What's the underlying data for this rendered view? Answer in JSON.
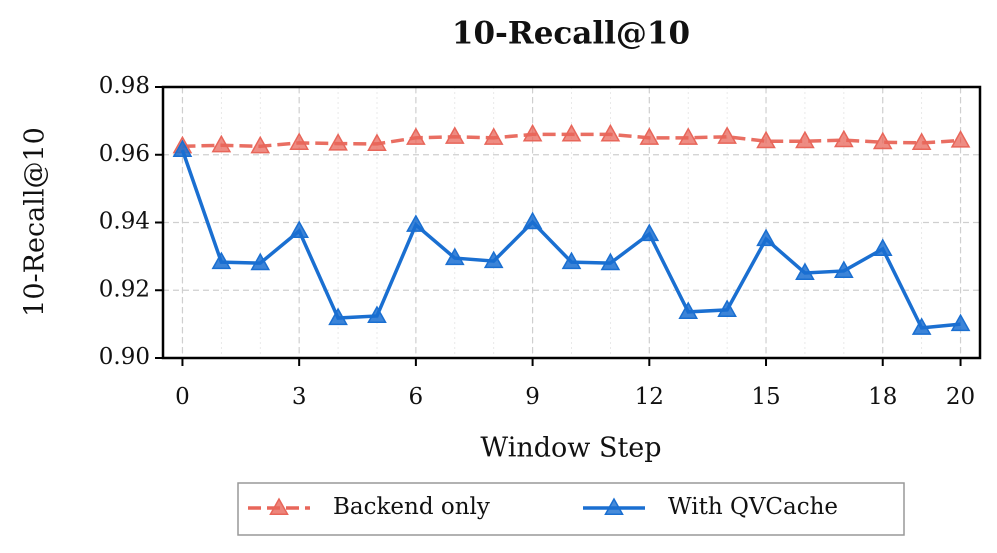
{
  "chart_data": {
    "type": "line",
    "title": "10-Recall@10",
    "x_label": "Window Step",
    "y_label": "10-Recall@10",
    "x": [
      0,
      1,
      2,
      3,
      4,
      5,
      6,
      7,
      8,
      9,
      10,
      11,
      12,
      13,
      14,
      15,
      16,
      17,
      18,
      19,
      20
    ],
    "series": [
      {
        "name": "Backend only",
        "color": "#e8665a",
        "dash": true,
        "values": [
          0.9625,
          0.9628,
          0.9625,
          0.9635,
          0.9633,
          0.9632,
          0.965,
          0.9653,
          0.965,
          0.966,
          0.966,
          0.966,
          0.965,
          0.965,
          0.9653,
          0.964,
          0.964,
          0.9643,
          0.9637,
          0.9635,
          0.9642
        ]
      },
      {
        "name": "With QVCache",
        "color": "#1a6fd1",
        "dash": false,
        "values": [
          0.9614,
          0.9283,
          0.928,
          0.9375,
          0.9118,
          0.9124,
          0.9393,
          0.9295,
          0.9286,
          0.9401,
          0.9283,
          0.928,
          0.9366,
          0.9136,
          0.9142,
          0.9351,
          0.9251,
          0.9257,
          0.9322,
          0.9089,
          0.91
        ]
      }
    ],
    "xlim": [
      -0.5,
      20.5
    ],
    "ylim": [
      0.9,
      0.98
    ],
    "xticks": [
      0,
      3,
      6,
      9,
      12,
      15,
      18,
      20
    ],
    "yticks": [
      {
        "value": 0.9,
        "label": "0.90"
      },
      {
        "value": 0.92,
        "label": "0.92"
      },
      {
        "value": 0.94,
        "label": "0.94"
      },
      {
        "value": 0.96,
        "label": "0.96"
      },
      {
        "value": 0.98,
        "label": "0.98"
      }
    ],
    "grid": true,
    "legend": "bottom"
  }
}
